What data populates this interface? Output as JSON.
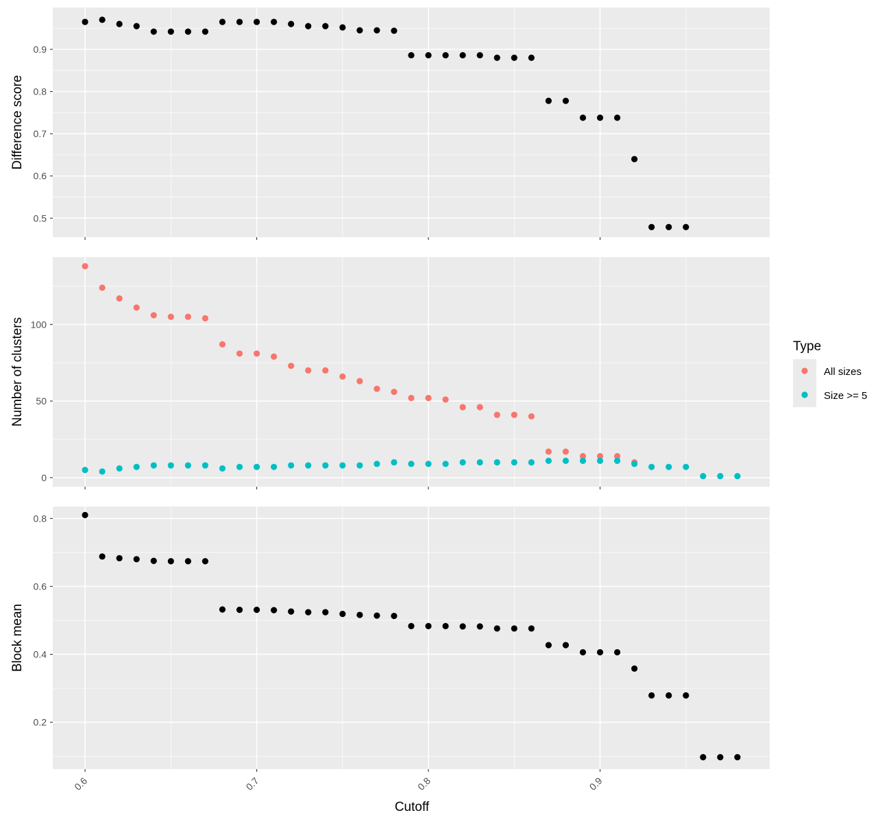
{
  "chart_data": {
    "type": "scatter",
    "xlabel": "Cutoff",
    "x_ticks": [
      0.6,
      0.7,
      0.8,
      0.9
    ],
    "x_tick_labels": [
      "0.6",
      "0.7",
      "0.8",
      "0.9"
    ],
    "xlim": [
      0.5812,
      0.9988
    ],
    "grid": true,
    "legend": {
      "title": "Type",
      "position": "right",
      "entries": [
        {
          "label": "All sizes",
          "color": "#F8766D"
        },
        {
          "label": "Size >= 5",
          "color": "#00BFC4"
        }
      ]
    },
    "panels": [
      {
        "ylabel": "Difference score",
        "ylim": [
          0.455,
          0.999
        ],
        "y_ticks": [
          0.5,
          0.6,
          0.7,
          0.8,
          0.9
        ],
        "y_tick_labels": [
          "0.5",
          "0.6",
          "0.7",
          "0.8",
          "0.9"
        ],
        "series": [
          {
            "color": "#000000",
            "x": [
              0.6,
              0.61,
              0.62,
              0.63,
              0.64,
              0.65,
              0.66,
              0.67,
              0.68,
              0.69,
              0.7,
              0.71,
              0.72,
              0.73,
              0.74,
              0.75,
              0.76,
              0.77,
              0.78,
              0.79,
              0.8,
              0.81,
              0.82,
              0.83,
              0.84,
              0.85,
              0.86,
              0.87,
              0.88,
              0.89,
              0.9,
              0.91,
              0.92,
              0.93,
              0.94,
              0.95
            ],
            "y": [
              0.965,
              0.97,
              0.96,
              0.955,
              0.942,
              0.942,
              0.942,
              0.942,
              0.965,
              0.965,
              0.965,
              0.965,
              0.96,
              0.955,
              0.955,
              0.952,
              0.945,
              0.945,
              0.944,
              0.886,
              0.886,
              0.886,
              0.886,
              0.886,
              0.88,
              0.88,
              0.88,
              0.778,
              0.778,
              0.738,
              0.738,
              0.738,
              0.64,
              0.479,
              0.479,
              0.479
            ]
          }
        ]
      },
      {
        "ylabel": "Number of clusters",
        "ylim": [
          -5.9,
          144
        ],
        "y_ticks": [
          0,
          50,
          100
        ],
        "y_tick_labels": [
          "0",
          "50",
          "100"
        ],
        "series": [
          {
            "name": "All sizes",
            "color": "#F8766D",
            "x": [
              0.6,
              0.61,
              0.62,
              0.63,
              0.64,
              0.65,
              0.66,
              0.67,
              0.68,
              0.69,
              0.7,
              0.71,
              0.72,
              0.73,
              0.74,
              0.75,
              0.76,
              0.77,
              0.78,
              0.79,
              0.8,
              0.81,
              0.82,
              0.83,
              0.84,
              0.85,
              0.86,
              0.87,
              0.88,
              0.89,
              0.9,
              0.91,
              0.92
            ],
            "y": [
              138,
              124,
              117,
              111,
              106,
              105,
              105,
              104,
              87,
              81,
              81,
              79,
              73,
              70,
              70,
              66,
              63,
              58,
              56,
              52,
              52,
              51,
              46,
              46,
              41,
              41,
              40,
              17,
              17,
              14,
              14,
              14,
              10
            ]
          },
          {
            "name": "Size >= 5",
            "color": "#00BFC4",
            "x": [
              0.6,
              0.61,
              0.62,
              0.63,
              0.64,
              0.65,
              0.66,
              0.67,
              0.68,
              0.69,
              0.7,
              0.71,
              0.72,
              0.73,
              0.74,
              0.75,
              0.76,
              0.77,
              0.78,
              0.79,
              0.8,
              0.81,
              0.82,
              0.83,
              0.84,
              0.85,
              0.86,
              0.87,
              0.88,
              0.89,
              0.9,
              0.91,
              0.92,
              0.93,
              0.94,
              0.95,
              0.96,
              0.97,
              0.98
            ],
            "y": [
              5,
              4,
              6,
              7,
              8,
              8,
              8,
              8,
              6,
              7,
              7,
              7,
              8,
              8,
              8,
              8,
              8,
              9,
              10,
              9,
              9,
              9,
              10,
              10,
              10,
              10,
              10,
              11,
              11,
              11,
              11,
              11,
              9,
              7,
              7,
              7,
              1,
              1,
              1
            ]
          }
        ]
      },
      {
        "ylabel": "Block mean",
        "ylim": [
          0.062,
          0.835
        ],
        "y_ticks": [
          0.2,
          0.4,
          0.6,
          0.8
        ],
        "y_tick_labels": [
          "0.2",
          "0.4",
          "0.6",
          "0.8"
        ],
        "series": [
          {
            "color": "#000000",
            "x": [
              0.6,
              0.61,
              0.62,
              0.63,
              0.64,
              0.65,
              0.66,
              0.67,
              0.68,
              0.69,
              0.7,
              0.71,
              0.72,
              0.73,
              0.74,
              0.75,
              0.76,
              0.77,
              0.78,
              0.79,
              0.8,
              0.81,
              0.82,
              0.83,
              0.84,
              0.85,
              0.86,
              0.87,
              0.88,
              0.89,
              0.9,
              0.91,
              0.92,
              0.93,
              0.94,
              0.95,
              0.96,
              0.97,
              0.98
            ],
            "y": [
              0.81,
              0.688,
              0.683,
              0.68,
              0.675,
              0.674,
              0.674,
              0.674,
              0.532,
              0.531,
              0.531,
              0.53,
              0.526,
              0.524,
              0.524,
              0.519,
              0.516,
              0.514,
              0.513,
              0.483,
              0.483,
              0.483,
              0.482,
              0.482,
              0.476,
              0.476,
              0.476,
              0.427,
              0.427,
              0.406,
              0.406,
              0.406,
              0.358,
              0.279,
              0.279,
              0.279,
              0.097,
              0.097,
              0.097
            ]
          }
        ]
      }
    ]
  }
}
